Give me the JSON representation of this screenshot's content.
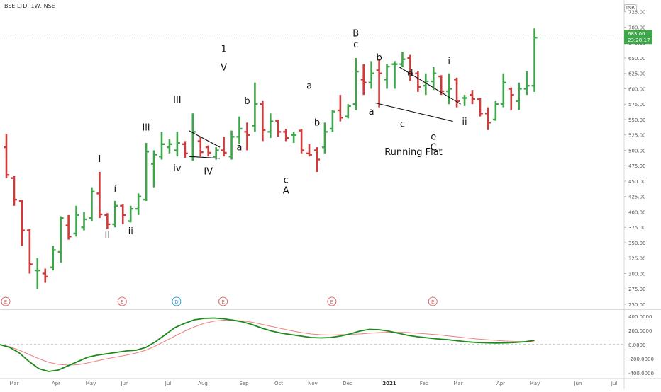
{
  "header": {
    "symbol_label": "BSE LTD, 1W, NSE",
    "currency_badge": "INR"
  },
  "price_tag": {
    "price": "683.00",
    "countdown": "23:28:17"
  },
  "colors": {
    "up": "#3ea54a",
    "down": "#d03a3a",
    "macd": "#1a8a1a",
    "signal": "#f08080",
    "wave_label": "#111111",
    "event_earnings": "#e06666",
    "event_dividend": "#2b9fd8"
  },
  "chart_data": {
    "type": "ohlc",
    "x_tick_labels": [
      "Mar",
      "Apr",
      "May",
      "Jun",
      "Jul",
      "Aug",
      "Sep",
      "Oct",
      "Nov",
      "Dec",
      "2021",
      "Feb",
      "Mar",
      "Apr",
      "May",
      "Jun",
      "Jul"
    ],
    "y_tick_labels": [
      "725.00",
      "700.00",
      "675.00",
      "650.00",
      "625.00",
      "600.00",
      "575.00",
      "550.00",
      "525.00",
      "500.00",
      "475.00",
      "450.00",
      "425.00",
      "400.00",
      "375.00",
      "350.00",
      "325.00",
      "300.00",
      "275.00",
      "250.00"
    ],
    "ylim": [
      250,
      735
    ],
    "bars": [
      {
        "o": 505,
        "h": 527,
        "l": 455,
        "c": 460
      },
      {
        "o": 455,
        "h": 458,
        "l": 410,
        "c": 420
      },
      {
        "o": 418,
        "h": 420,
        "l": 345,
        "c": 370
      },
      {
        "o": 370,
        "h": 372,
        "l": 300,
        "c": 315
      },
      {
        "o": 305,
        "h": 325,
        "l": 275,
        "c": 305
      },
      {
        "o": 300,
        "h": 308,
        "l": 285,
        "c": 295
      },
      {
        "o": 310,
        "h": 345,
        "l": 305,
        "c": 338
      },
      {
        "o": 335,
        "h": 393,
        "l": 318,
        "c": 390
      },
      {
        "o": 378,
        "h": 395,
        "l": 355,
        "c": 360
      },
      {
        "o": 365,
        "h": 410,
        "l": 360,
        "c": 395
      },
      {
        "o": 375,
        "h": 400,
        "l": 370,
        "c": 388
      },
      {
        "o": 390,
        "h": 440,
        "l": 385,
        "c": 433
      },
      {
        "o": 430,
        "h": 465,
        "l": 390,
        "c": 396
      },
      {
        "o": 395,
        "h": 398,
        "l": 372,
        "c": 380
      },
      {
        "o": 380,
        "h": 418,
        "l": 375,
        "c": 410
      },
      {
        "o": 410,
        "h": 412,
        "l": 380,
        "c": 395
      },
      {
        "o": 385,
        "h": 410,
        "l": 383,
        "c": 405
      },
      {
        "o": 405,
        "h": 430,
        "l": 395,
        "c": 425
      },
      {
        "o": 420,
        "h": 512,
        "l": 418,
        "c": 498
      },
      {
        "o": 478,
        "h": 500,
        "l": 440,
        "c": 493
      },
      {
        "o": 490,
        "h": 530,
        "l": 485,
        "c": 510
      },
      {
        "o": 505,
        "h": 518,
        "l": 495,
        "c": 510
      },
      {
        "o": 500,
        "h": 530,
        "l": 490,
        "c": 512
      },
      {
        "o": 510,
        "h": 515,
        "l": 488,
        "c": 495
      },
      {
        "o": 490,
        "h": 560,
        "l": 483,
        "c": 530
      },
      {
        "o": 515,
        "h": 522,
        "l": 490,
        "c": 497
      },
      {
        "o": 505,
        "h": 508,
        "l": 490,
        "c": 496
      },
      {
        "o": 490,
        "h": 505,
        "l": 485,
        "c": 500
      },
      {
        "o": 500,
        "h": 522,
        "l": 490,
        "c": 496
      },
      {
        "o": 490,
        "h": 532,
        "l": 485,
        "c": 522
      },
      {
        "o": 522,
        "h": 555,
        "l": 510,
        "c": 535
      },
      {
        "o": 530,
        "h": 545,
        "l": 500,
        "c": 525
      },
      {
        "o": 540,
        "h": 610,
        "l": 530,
        "c": 575
      },
      {
        "o": 575,
        "h": 580,
        "l": 515,
        "c": 533
      },
      {
        "o": 530,
        "h": 560,
        "l": 520,
        "c": 547
      },
      {
        "o": 548,
        "h": 550,
        "l": 522,
        "c": 530
      },
      {
        "o": 530,
        "h": 535,
        "l": 515,
        "c": 520
      },
      {
        "o": 525,
        "h": 530,
        "l": 512,
        "c": 525
      },
      {
        "o": 532,
        "h": 535,
        "l": 495,
        "c": 500
      },
      {
        "o": 495,
        "h": 510,
        "l": 490,
        "c": 493
      },
      {
        "o": 500,
        "h": 505,
        "l": 465,
        "c": 485
      },
      {
        "o": 505,
        "h": 545,
        "l": 495,
        "c": 530
      },
      {
        "o": 535,
        "h": 565,
        "l": 530,
        "c": 563
      },
      {
        "o": 565,
        "h": 590,
        "l": 547,
        "c": 553
      },
      {
        "o": 555,
        "h": 575,
        "l": 552,
        "c": 572
      },
      {
        "o": 575,
        "h": 650,
        "l": 565,
        "c": 628
      },
      {
        "o": 615,
        "h": 640,
        "l": 590,
        "c": 610
      },
      {
        "o": 610,
        "h": 645,
        "l": 600,
        "c": 625
      },
      {
        "o": 630,
        "h": 648,
        "l": 570,
        "c": 625
      },
      {
        "o": 615,
        "h": 640,
        "l": 600,
        "c": 636
      },
      {
        "o": 640,
        "h": 645,
        "l": 600,
        "c": 640
      },
      {
        "o": 640,
        "h": 660,
        "l": 635,
        "c": 648
      },
      {
        "o": 650,
        "h": 655,
        "l": 612,
        "c": 625
      },
      {
        "o": 625,
        "h": 628,
        "l": 595,
        "c": 603
      },
      {
        "o": 605,
        "h": 625,
        "l": 590,
        "c": 612
      },
      {
        "o": 612,
        "h": 635,
        "l": 598,
        "c": 625
      },
      {
        "o": 620,
        "h": 622,
        "l": 590,
        "c": 596
      },
      {
        "o": 596,
        "h": 625,
        "l": 575,
        "c": 600
      },
      {
        "o": 615,
        "h": 618,
        "l": 570,
        "c": 580
      },
      {
        "o": 585,
        "h": 590,
        "l": 572,
        "c": 585
      },
      {
        "o": 590,
        "h": 598,
        "l": 575,
        "c": 583
      },
      {
        "o": 583,
        "h": 585,
        "l": 555,
        "c": 560
      },
      {
        "o": 560,
        "h": 570,
        "l": 533,
        "c": 545
      },
      {
        "o": 550,
        "h": 580,
        "l": 548,
        "c": 575
      },
      {
        "o": 575,
        "h": 625,
        "l": 570,
        "c": 610
      },
      {
        "o": 600,
        "h": 602,
        "l": 565,
        "c": 590
      },
      {
        "o": 580,
        "h": 610,
        "l": 565,
        "c": 600
      },
      {
        "o": 600,
        "h": 628,
        "l": 590,
        "c": 605
      },
      {
        "o": 605,
        "h": 698,
        "l": 595,
        "c": 683
      }
    ],
    "wave_labels": [
      {
        "text": "I",
        "bar": 12,
        "price": 481
      },
      {
        "text": "II",
        "bar": 13,
        "price": 358
      },
      {
        "text": "i",
        "bar": 14,
        "price": 433
      },
      {
        "text": "ii",
        "bar": 16,
        "price": 364
      },
      {
        "text": "iii",
        "bar": 18,
        "price": 532
      },
      {
        "text": "III",
        "bar": 22,
        "price": 577
      },
      {
        "text": "iv",
        "bar": 22,
        "price": 466
      },
      {
        "text": "IV",
        "bar": 26,
        "price": 461
      },
      {
        "text": "1",
        "bar": 28,
        "price": 660
      },
      {
        "text": "V",
        "bar": 28,
        "price": 630
      },
      {
        "text": "a",
        "bar": 30,
        "price": 500
      },
      {
        "text": "b",
        "bar": 31,
        "price": 575
      },
      {
        "text": "c",
        "bar": 36,
        "price": 447
      },
      {
        "text": "A",
        "bar": 36,
        "price": 430
      },
      {
        "text": "a",
        "bar": 39,
        "price": 600
      },
      {
        "text": "b",
        "bar": 40,
        "price": 540
      },
      {
        "text": "B",
        "bar": 45,
        "price": 685
      },
      {
        "text": "c",
        "bar": 45,
        "price": 667
      },
      {
        "text": "b",
        "bar": 48,
        "price": 646
      },
      {
        "text": "a",
        "bar": 47,
        "price": 558
      },
      {
        "text": "d",
        "bar": 52,
        "price": 620
      },
      {
        "text": "c",
        "bar": 51,
        "price": 538
      },
      {
        "text": "e",
        "bar": 55,
        "price": 517
      },
      {
        "text": "C",
        "bar": 55,
        "price": 500
      },
      {
        "text": "i",
        "bar": 57,
        "price": 640
      },
      {
        "text": "ii",
        "bar": 59,
        "price": 542
      }
    ],
    "annotation_text": "Running Flat",
    "trend_lines": [
      {
        "b1": 23.5,
        "p1": 532,
        "b2": 27.5,
        "p2": 505
      },
      {
        "b1": 23.5,
        "p1": 490,
        "b2": 27.5,
        "p2": 487
      },
      {
        "b1": 50.5,
        "p1": 636,
        "b2": 58.5,
        "p2": 575
      },
      {
        "b1": 47.5,
        "p1": 577,
        "b2": 57.5,
        "p2": 547
      }
    ],
    "events": [
      {
        "type": "E",
        "bar": 0
      },
      {
        "type": "E",
        "bar": 15
      },
      {
        "type": "D",
        "bar": 22
      },
      {
        "type": "E",
        "bar": 28
      },
      {
        "type": "E",
        "bar": 42
      },
      {
        "type": "E",
        "bar": 55
      }
    ],
    "indicator": {
      "y_tick_labels": [
        "400.0000",
        "200.0000",
        "0.0000",
        "-200.0000",
        "-400.0000"
      ],
      "ylim": [
        -480,
        470
      ],
      "macd": [
        0,
        -40,
        -120,
        -240,
        -340,
        -380,
        -360,
        -300,
        -240,
        -180,
        -150,
        -130,
        -110,
        -90,
        -80,
        -40,
        40,
        140,
        240,
        300,
        350,
        370,
        375,
        365,
        345,
        320,
        280,
        230,
        190,
        160,
        140,
        120,
        100,
        95,
        100,
        120,
        150,
        190,
        215,
        210,
        190,
        160,
        130,
        110,
        95,
        80,
        70,
        55,
        40,
        30,
        25,
        22,
        24,
        30,
        40,
        60
      ],
      "signal": [
        0,
        -30,
        -80,
        -140,
        -200,
        -250,
        -280,
        -290,
        -285,
        -260,
        -230,
        -200,
        -175,
        -150,
        -120,
        -80,
        -20,
        50,
        120,
        190,
        250,
        300,
        330,
        345,
        345,
        335,
        315,
        285,
        255,
        225,
        195,
        170,
        150,
        140,
        135,
        140,
        145,
        150,
        160,
        170,
        175,
        175,
        170,
        160,
        150,
        140,
        125,
        110,
        95,
        80,
        70,
        60,
        50,
        45,
        42,
        40
      ]
    }
  }
}
